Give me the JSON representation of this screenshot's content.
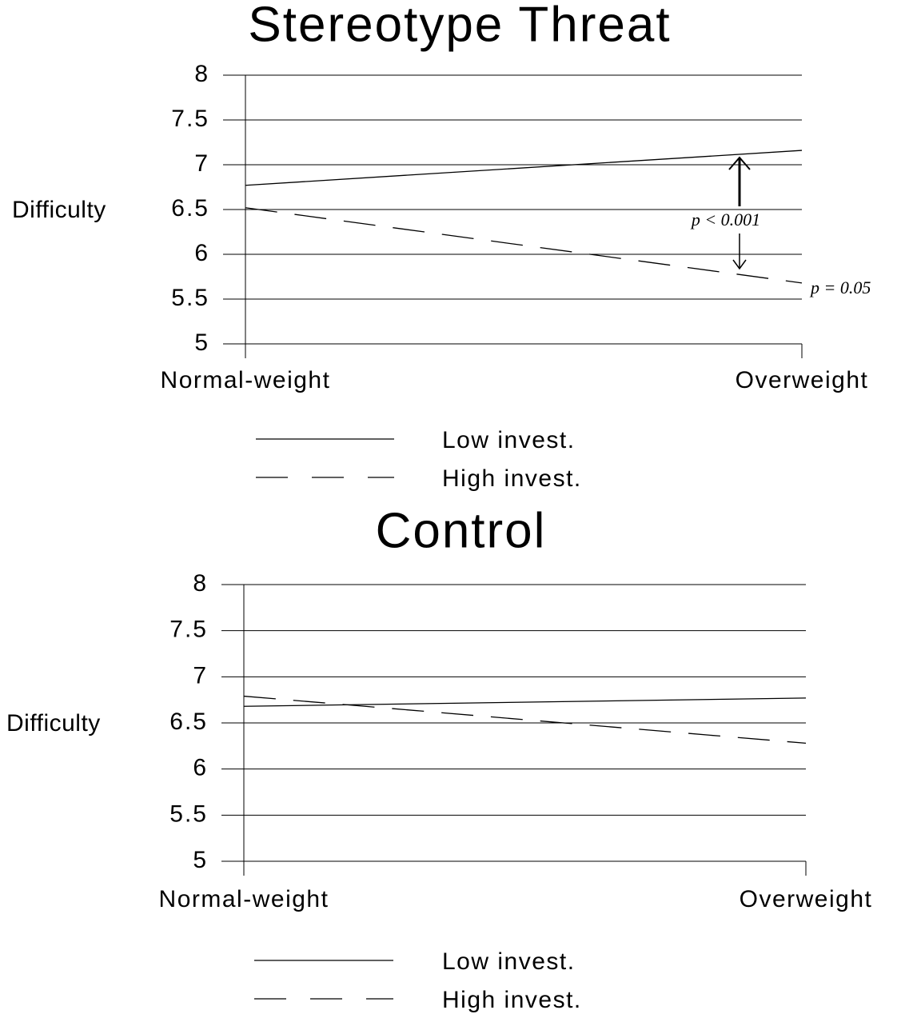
{
  "chart_data": [
    {
      "type": "line",
      "title": "Stereotype Threat",
      "y_label": "Difficulty",
      "categories": [
        "Normal-weight",
        "Overweight"
      ],
      "series": [
        {
          "name": "Low invest.",
          "color": "#000000",
          "style": "solid",
          "values": [
            6.77,
            7.16
          ]
        },
        {
          "name": "High invest.",
          "color": "#000000",
          "style": "dashed",
          "values": [
            6.52,
            5.68
          ]
        }
      ],
      "ylim": [
        5,
        8
      ],
      "yticks": [
        5,
        5.5,
        6,
        6.5,
        7,
        7.5,
        8
      ],
      "grid": true,
      "annotations": [
        "p < 0.001",
        "p = 0.05"
      ]
    },
    {
      "type": "line",
      "title": "Control",
      "y_label": "Difficulty",
      "categories": [
        "Normal-weight",
        "Overweight"
      ],
      "series": [
        {
          "name": "Low invest.",
          "color": "#000000",
          "style": "solid",
          "values": [
            6.68,
            6.77
          ]
        },
        {
          "name": "High invest.",
          "color": "#000000",
          "style": "dashed",
          "values": [
            6.79,
            6.28
          ]
        }
      ],
      "ylim": [
        5,
        8
      ],
      "yticks": [
        5,
        5.5,
        6,
        6.5,
        7,
        7.5,
        8
      ],
      "grid": true
    }
  ]
}
